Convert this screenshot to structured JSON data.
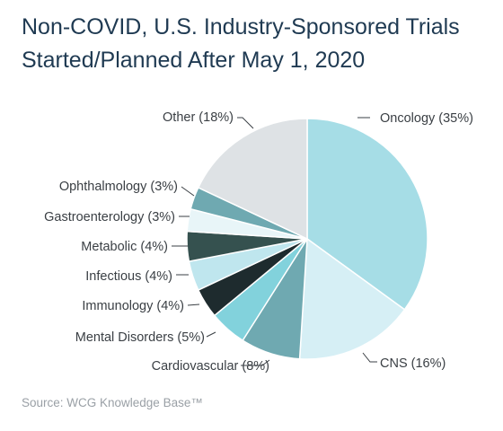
{
  "title_line1": "Non-COVID, U.S. Industry-Sponsored Trials",
  "title_line2": "Started/Planned After May 1, 2020",
  "source": "Source: WCG Knowledge Base™",
  "chart_data": {
    "type": "pie",
    "title": "Non-COVID, U.S. Industry-Sponsored Trials Started/Planned After May 1, 2020",
    "start": "12 o'clock, clockwise",
    "slices": [
      {
        "name": "Oncology",
        "value": 35,
        "label": "Oncology (35%)",
        "color": "#a6dde6"
      },
      {
        "name": "CNS",
        "value": 16,
        "label": "CNS (16%)",
        "color": "#d6eff5"
      },
      {
        "name": "Cardiovascular",
        "value": 8,
        "label": "Cardiovascular (8%)",
        "color": "#6fa9b1"
      },
      {
        "name": "Mental Disorders",
        "value": 5,
        "label": "Mental Disorders (5%)",
        "color": "#82d2dc"
      },
      {
        "name": "Immunology",
        "value": 4,
        "label": "Immunology (4%)",
        "color": "#1e2b2e"
      },
      {
        "name": "Infectious",
        "value": 4,
        "label": "Infectious (4%)",
        "color": "#bfe6ee"
      },
      {
        "name": "Metabolic",
        "value": 4,
        "label": "Metabolic (4%)",
        "color": "#35514f"
      },
      {
        "name": "Gastroenterology",
        "value": 3,
        "label": "Gastroenterology (3%)",
        "color": "#e8f5f8"
      },
      {
        "name": "Ophthalmology",
        "value": 3,
        "label": "Ophthalmology (3%)",
        "color": "#6fa9b1"
      },
      {
        "name": "Other",
        "value": 18,
        "label": "Other (18%)",
        "color": "#dee2e5"
      }
    ]
  }
}
